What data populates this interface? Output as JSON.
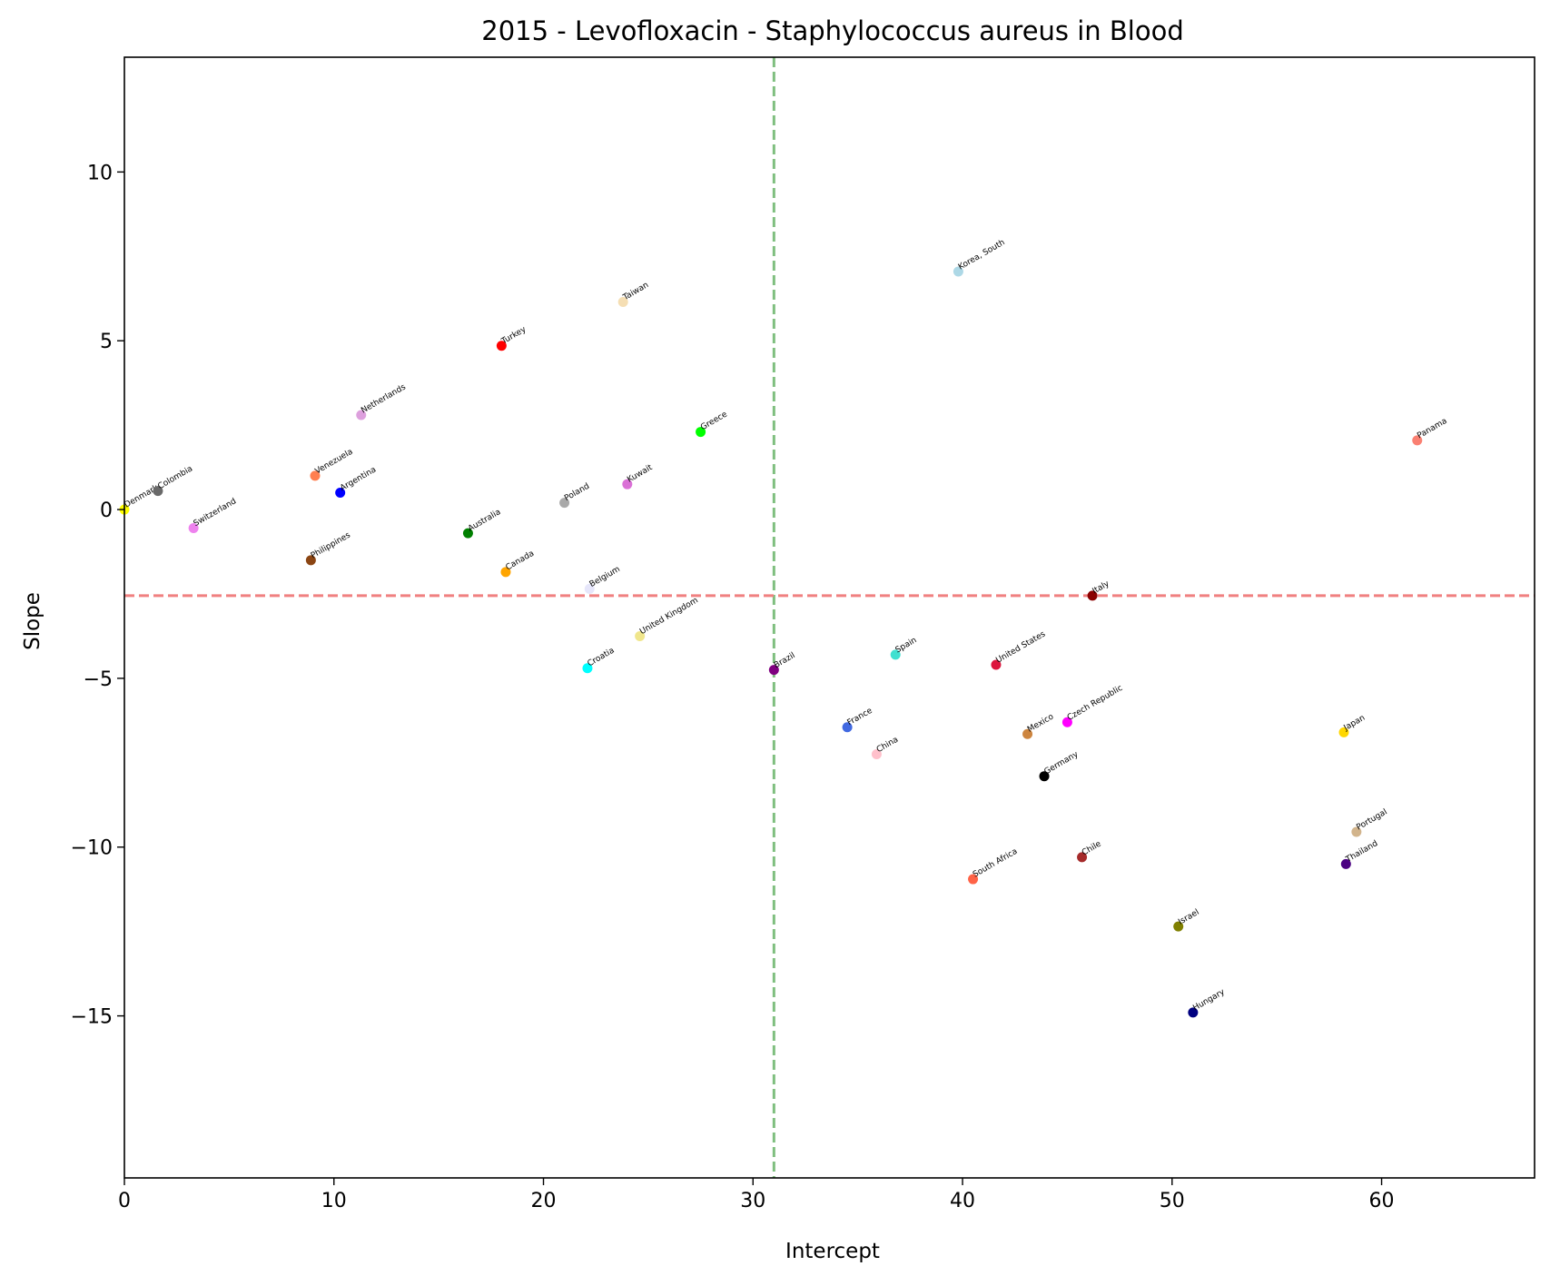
{
  "chart_data": {
    "type": "scatter",
    "title": "2015 - Levofloxacin - Staphylococcus aureus in Blood",
    "xlabel": "Intercept",
    "ylabel": "Slope",
    "xlim": [
      0,
      67.3
    ],
    "ylim": [
      -19.8,
      13.4
    ],
    "xticks": [
      0,
      10,
      20,
      30,
      40,
      50,
      60
    ],
    "yticks": [
      -15,
      -10,
      -5,
      0,
      5,
      10
    ],
    "xtick_labels": [
      "0",
      "10",
      "20",
      "30",
      "40",
      "50",
      "60"
    ],
    "ytick_labels": [
      "−15",
      "−10",
      "−5",
      "0",
      "5",
      "10"
    ],
    "grid": false,
    "reference_lines": [
      {
        "orientation": "vertical",
        "value": 31.0,
        "color": "#7fbf7f",
        "style": "dashed"
      },
      {
        "orientation": "horizontal",
        "value": -2.55,
        "color": "#f08080",
        "style": "dashed"
      }
    ],
    "points": [
      {
        "label": "Denmark",
        "x": 0.0,
        "y": 0.0,
        "color": "#ffff00"
      },
      {
        "label": "Colombia",
        "x": 1.6,
        "y": 0.55,
        "color": "#696969"
      },
      {
        "label": "Switzerland",
        "x": 3.3,
        "y": -0.55,
        "color": "#ee82ee"
      },
      {
        "label": "Philippines",
        "x": 8.9,
        "y": -1.5,
        "color": "#8b4513"
      },
      {
        "label": "Venezuela",
        "x": 9.1,
        "y": 1.0,
        "color": "#ff7f50"
      },
      {
        "label": "Argentina",
        "x": 10.3,
        "y": 0.5,
        "color": "#0000ff"
      },
      {
        "label": "Netherlands",
        "x": 11.3,
        "y": 2.8,
        "color": "#dda0dd"
      },
      {
        "label": "Australia",
        "x": 16.4,
        "y": -0.7,
        "color": "#008000"
      },
      {
        "label": "Turkey",
        "x": 18.0,
        "y": 4.85,
        "color": "#ff0000"
      },
      {
        "label": "Canada",
        "x": 18.2,
        "y": -1.85,
        "color": "#ffa500"
      },
      {
        "label": "Poland",
        "x": 21.0,
        "y": 0.2,
        "color": "#a9a9a9"
      },
      {
        "label": "Belgium",
        "x": 22.2,
        "y": -2.35,
        "color": "#e6e6fa"
      },
      {
        "label": "Croatia",
        "x": 22.1,
        "y": -4.7,
        "color": "#00ffff"
      },
      {
        "label": "Taiwan",
        "x": 23.8,
        "y": 6.15,
        "color": "#f5deb3"
      },
      {
        "label": "Kuwait",
        "x": 24.0,
        "y": 0.75,
        "color": "#da70d6"
      },
      {
        "label": "United Kingdom",
        "x": 24.6,
        "y": -3.75,
        "color": "#f0e68c"
      },
      {
        "label": "Greece",
        "x": 27.5,
        "y": 2.3,
        "color": "#00ff00"
      },
      {
        "label": "Brazil",
        "x": 31.0,
        "y": -4.75,
        "color": "#800080"
      },
      {
        "label": "France",
        "x": 34.5,
        "y": -6.45,
        "color": "#4169e1"
      },
      {
        "label": "China",
        "x": 35.9,
        "y": -7.25,
        "color": "#ffc0cb"
      },
      {
        "label": "Spain",
        "x": 36.8,
        "y": -4.3,
        "color": "#40e0d0"
      },
      {
        "label": "Korea, South",
        "x": 39.8,
        "y": 7.05,
        "color": "#add8e6"
      },
      {
        "label": "South Africa",
        "x": 40.5,
        "y": -10.95,
        "color": "#ff6347"
      },
      {
        "label": "United States",
        "x": 41.6,
        "y": -4.6,
        "color": "#dc143c"
      },
      {
        "label": "Mexico",
        "x": 43.1,
        "y": -6.65,
        "color": "#cd853f"
      },
      {
        "label": "Germany",
        "x": 43.9,
        "y": -7.9,
        "color": "#000000"
      },
      {
        "label": "Czech Republic",
        "x": 45.0,
        "y": -6.3,
        "color": "#ff00ff"
      },
      {
        "label": "Chile",
        "x": 45.7,
        "y": -10.3,
        "color": "#a52a2a"
      },
      {
        "label": "Italy",
        "x": 46.2,
        "y": -2.55,
        "color": "#8b0000"
      },
      {
        "label": "Israel",
        "x": 50.3,
        "y": -12.35,
        "color": "#808000"
      },
      {
        "label": "Hungary",
        "x": 51.0,
        "y": -14.9,
        "color": "#000080"
      },
      {
        "label": "Japan",
        "x": 58.2,
        "y": -6.6,
        "color": "#ffd700"
      },
      {
        "label": "Thailand",
        "x": 58.3,
        "y": -10.5,
        "color": "#4b0082"
      },
      {
        "label": "Portugal",
        "x": 58.8,
        "y": -9.55,
        "color": "#d2b48c"
      },
      {
        "label": "Panama",
        "x": 61.7,
        "y": 2.05,
        "color": "#fa8072"
      }
    ]
  }
}
